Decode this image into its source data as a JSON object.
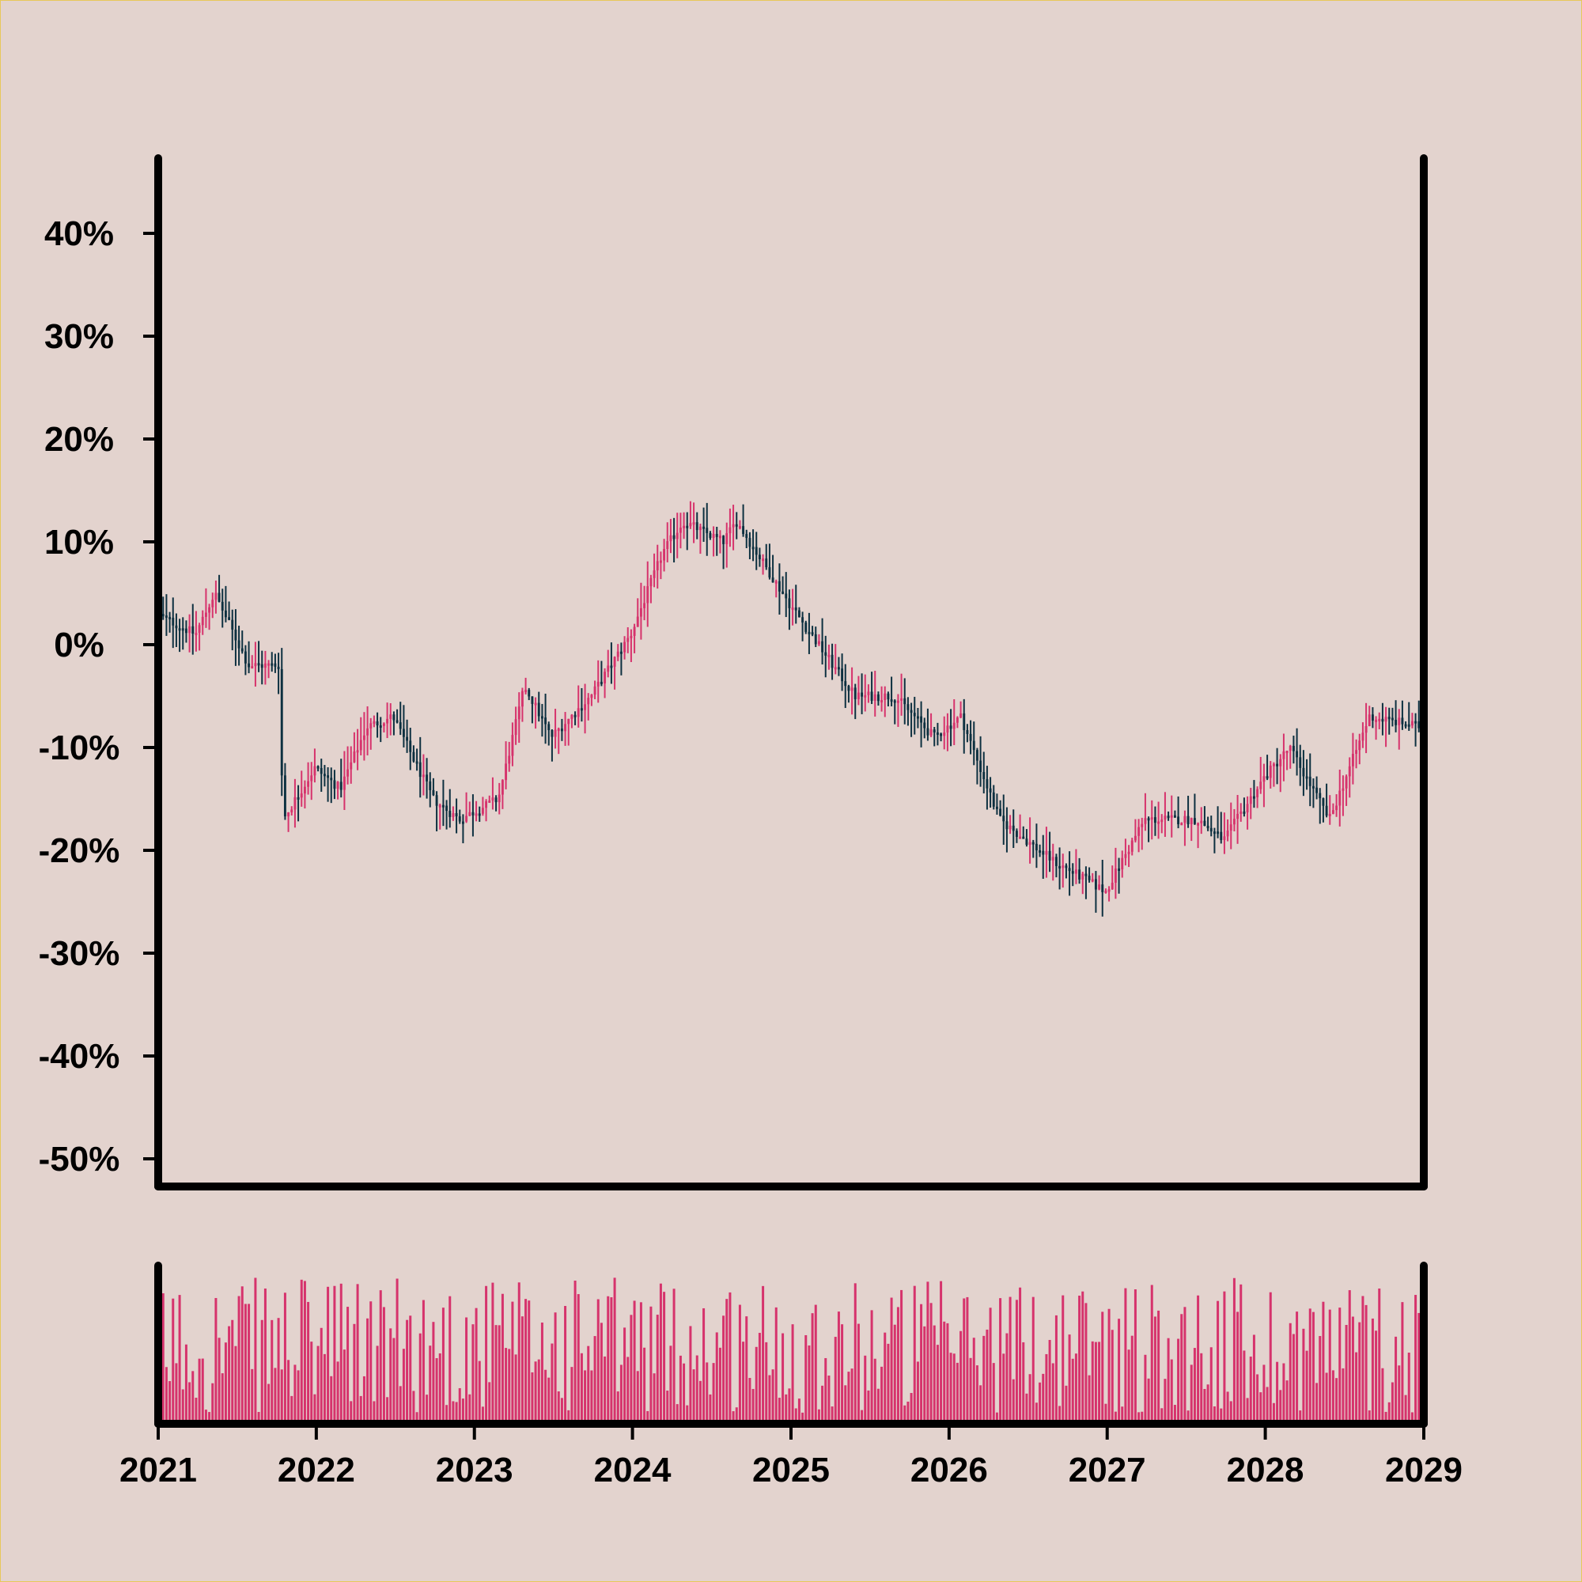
{
  "chart_data": {
    "type": "candlestick",
    "title": "",
    "xlabel": "",
    "ylabel": "",
    "ylim": [
      -0.5,
      0.45
    ],
    "xlim": [
      "2021-01-01",
      "2029-01-01"
    ],
    "y_ticks": [
      0.4,
      0.3,
      0.2,
      0.1,
      0.0,
      -0.1,
      -0.2,
      -0.3,
      -0.4,
      -0.5
    ],
    "y_tick_labels": [
      "40%",
      "30%",
      "20%",
      "10%",
      "0%",
      "-10%",
      "-20%",
      "-30%",
      "-40%",
      "-50%"
    ],
    "x_ticks": [
      "2021-01-01",
      "2022-01-01",
      "2023-01-01",
      "2024-01-01",
      "2025-01-01",
      "2026-01-01",
      "2027-01-01",
      "2028-01-01",
      "2029-01-01"
    ],
    "x_tick_labels": [
      "2021",
      "2022",
      "2023",
      "2024",
      "2025",
      "2026",
      "2027",
      "2028",
      "2029"
    ],
    "trend_anchors": [
      [
        "2021-01-01",
        0.03
      ],
      [
        "2021-04-01",
        0.01
      ],
      [
        "2021-05-15",
        0.05
      ],
      [
        "2021-08-01",
        -0.02
      ],
      [
        "2021-10-10",
        -0.02
      ],
      [
        "2021-10-20",
        -0.17
      ],
      [
        "2022-01-01",
        -0.12
      ],
      [
        "2022-03-01",
        -0.14
      ],
      [
        "2022-05-01",
        -0.08
      ],
      [
        "2022-07-01",
        -0.07
      ],
      [
        "2022-10-01",
        -0.15
      ],
      [
        "2022-12-01",
        -0.17
      ],
      [
        "2023-03-01",
        -0.15
      ],
      [
        "2023-05-01",
        -0.04
      ],
      [
        "2023-07-01",
        -0.09
      ],
      [
        "2023-10-01",
        -0.05
      ],
      [
        "2024-01-01",
        0.01
      ],
      [
        "2024-03-15",
        0.09
      ],
      [
        "2024-05-01",
        0.12
      ],
      [
        "2024-08-01",
        0.1
      ],
      [
        "2024-09-01",
        0.12
      ],
      [
        "2025-01-01",
        0.04
      ],
      [
        "2025-06-01",
        -0.05
      ],
      [
        "2025-09-01",
        -0.05
      ],
      [
        "2025-12-01",
        -0.09
      ],
      [
        "2026-02-01",
        -0.07
      ],
      [
        "2026-05-01",
        -0.17
      ],
      [
        "2026-09-01",
        -0.21
      ],
      [
        "2027-01-01",
        -0.24
      ],
      [
        "2027-04-01",
        -0.17
      ],
      [
        "2027-08-01",
        -0.17
      ],
      [
        "2027-10-01",
        -0.19
      ],
      [
        "2028-01-01",
        -0.13
      ],
      [
        "2028-03-01",
        -0.1
      ],
      [
        "2028-06-01",
        -0.17
      ],
      [
        "2028-09-01",
        -0.07
      ],
      [
        "2029-01-01",
        -0.08
      ]
    ],
    "candles_per_year": 48,
    "up_color": "#d6336c",
    "down_color": "#0d3040",
    "volume": {
      "color": "#d6336c",
      "ylim": [
        0,
        1
      ],
      "note_visible": false
    },
    "grid": false,
    "legend": "none"
  },
  "colors": {
    "background": "#e3d3ce",
    "axis": "#000000",
    "frame_border": "#e8c85a"
  }
}
